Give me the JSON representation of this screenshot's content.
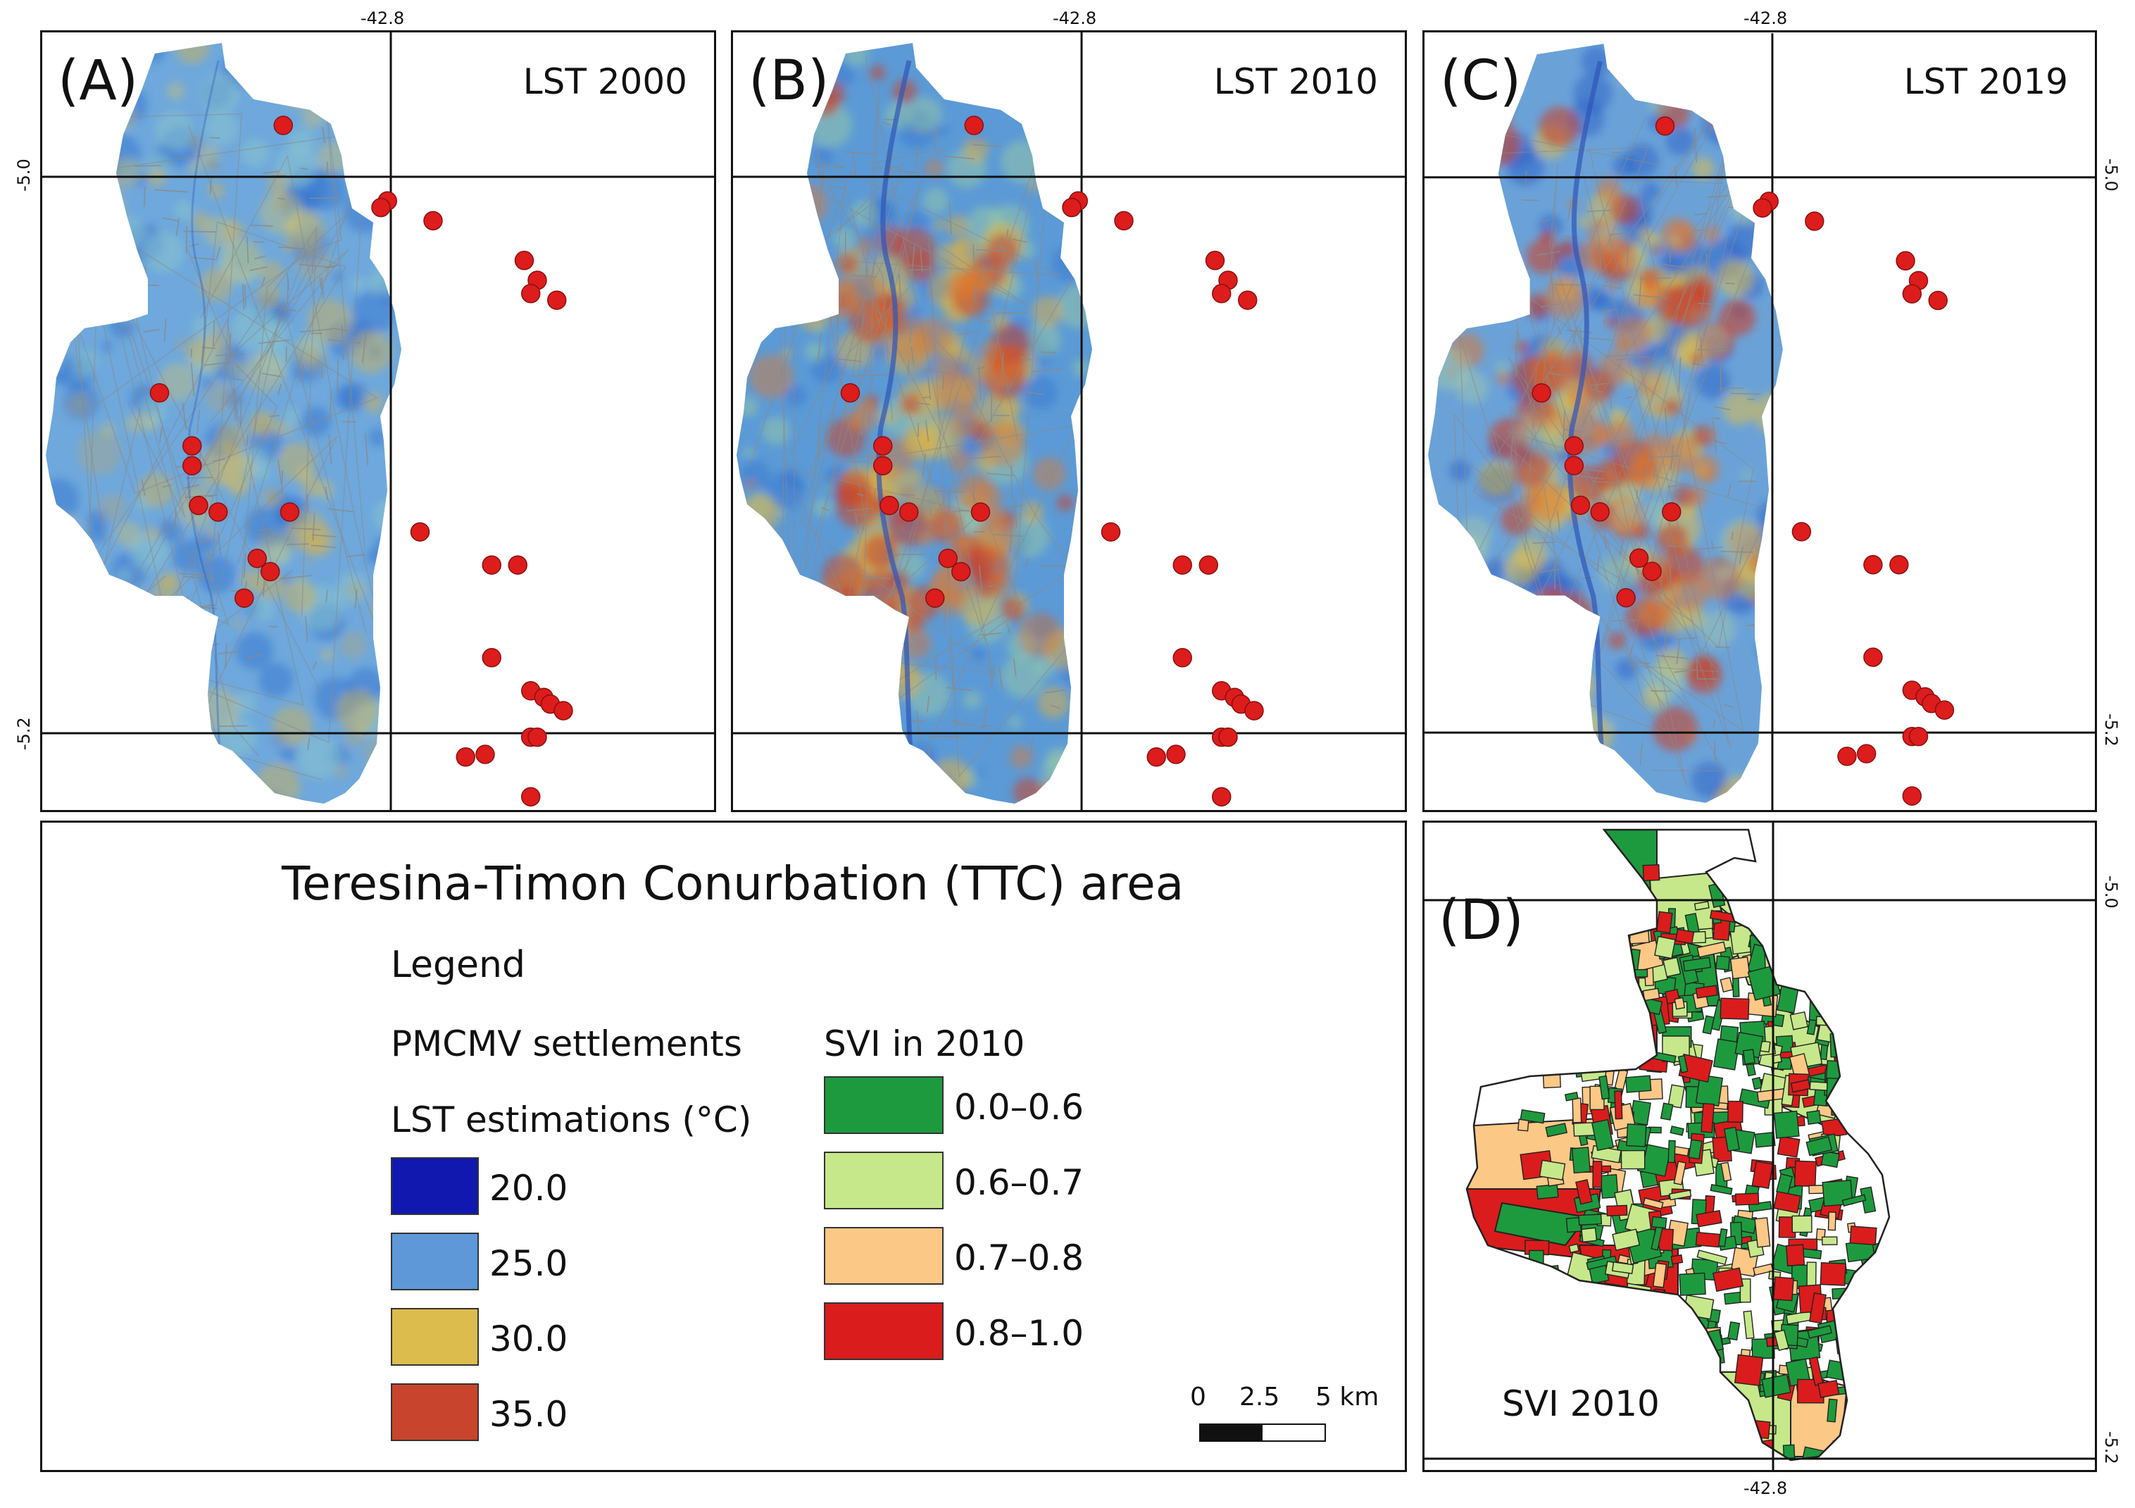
{
  "maps": [
    {
      "label": "(A)",
      "title": "LST 2000",
      "variant": 2000
    },
    {
      "label": "(B)",
      "title": "LST 2010",
      "variant": 2010
    },
    {
      "label": "(C)",
      "title": "LST 2019",
      "variant": 2019
    }
  ],
  "svi_map": {
    "label": "(D)",
    "title": "SVI 2010"
  },
  "coords": {
    "lon": "-42.8",
    "lat_top": "-5.0",
    "lat_bottom": "-5.2"
  },
  "legend": {
    "area_title": "Teresina-Timon Conurbation (TTC) area",
    "heading": "Legend",
    "settlements": "PMCMV settlements",
    "lst_heading": "LST estimations (°C)",
    "lst_items": [
      {
        "label": "20.0",
        "color": "#1018b0"
      },
      {
        "label": "25.0",
        "color": "#5e98d8"
      },
      {
        "label": "30.0",
        "color": "#dcbc4c"
      },
      {
        "label": "35.0",
        "color": "#c8442c"
      }
    ],
    "svi_heading": "SVI in 2010",
    "svi_items": [
      {
        "label": "0.0–0.6",
        "color": "#1e9a3e"
      },
      {
        "label": "0.6–0.7",
        "color": "#c6e88a"
      },
      {
        "label": "0.7–0.8",
        "color": "#fcc886"
      },
      {
        "label": "0.8–1.0",
        "color": "#da1c1c"
      }
    ]
  },
  "scalebar": {
    "t0": "0",
    "t1": "2.5",
    "t2": "5 km"
  },
  "colors": {
    "marker": "#dd1c1c",
    "road": "#8a8a8a",
    "river": "#2f55b8"
  }
}
